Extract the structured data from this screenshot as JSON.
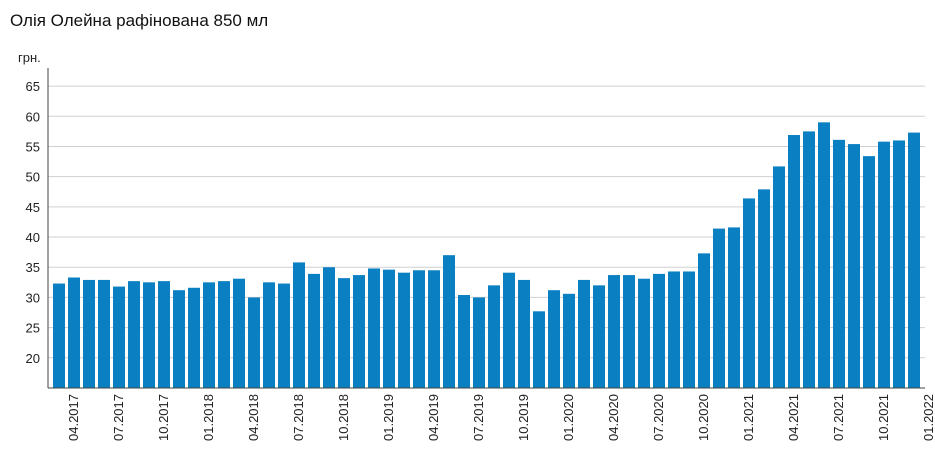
{
  "chart_data": {
    "type": "bar",
    "title": "Олія Олейна рафінована 850 мл",
    "y_label": "грн.",
    "categories": [
      "04.2017",
      null,
      null,
      "07.2017",
      null,
      null,
      "10.2017",
      null,
      null,
      "01.2018",
      null,
      null,
      "04.2018",
      null,
      null,
      "07.2018",
      null,
      null,
      "10.2018",
      null,
      null,
      "01.2019",
      null,
      null,
      "04.2019",
      null,
      null,
      "07.2019",
      null,
      null,
      "10.2019",
      null,
      null,
      "01.2020",
      null,
      null,
      "04.2020",
      null,
      null,
      "07.2020",
      null,
      null,
      "10.2020",
      null,
      null,
      "01.2021",
      null,
      null,
      "04.2021",
      null,
      null,
      "07.2021",
      null,
      null,
      "10.2021",
      null,
      null,
      "01.2022"
    ],
    "values": [
      32.3,
      33.3,
      32.9,
      32.9,
      31.8,
      32.7,
      32.5,
      32.7,
      31.2,
      31.6,
      32.5,
      32.7,
      33.1,
      30.0,
      32.5,
      32.3,
      35.8,
      33.9,
      35.0,
      33.2,
      33.7,
      34.8,
      34.6,
      34.1,
      34.5,
      34.5,
      37.0,
      30.4,
      30.0,
      32.0,
      34.1,
      32.9,
      27.7,
      31.2,
      30.6,
      32.9,
      32.0,
      33.7,
      33.7,
      33.1,
      33.9,
      34.3,
      34.3,
      37.3,
      41.4,
      41.6,
      46.4,
      47.9,
      51.7,
      56.9,
      57.5,
      59.0,
      56.1,
      55.4,
      53.4,
      55.8,
      56.0,
      57.3
    ],
    "color": "#0a7fc2",
    "ylim": [
      15,
      68
    ],
    "yticks": [
      20,
      25,
      30,
      35,
      40,
      45,
      50,
      55,
      60,
      65
    ],
    "grid": true
  }
}
